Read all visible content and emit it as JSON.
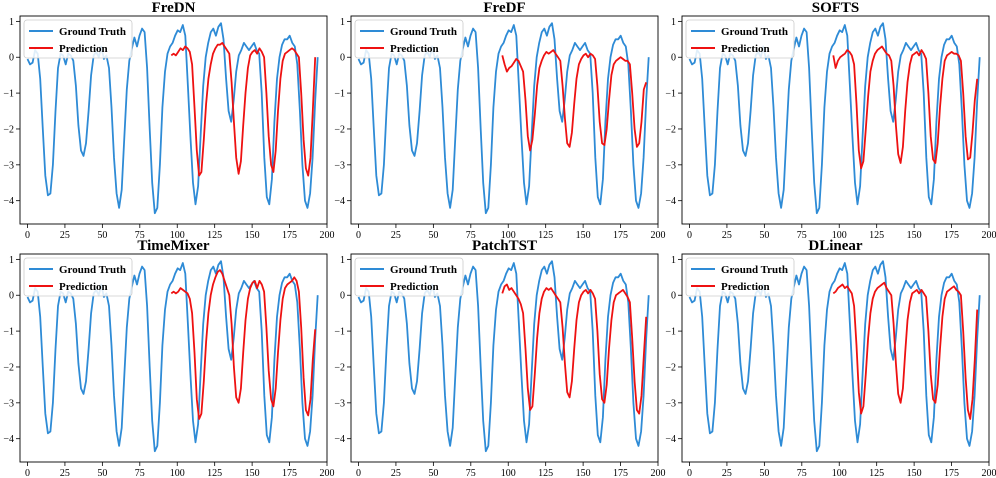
{
  "chart_data": [
    {
      "type": "line",
      "title": "FreDN",
      "xlim": [
        -5,
        200
      ],
      "ylim": [
        -4.65,
        1.15
      ],
      "xticks": [
        "0",
        "25",
        "50",
        "75",
        "100",
        "125",
        "150",
        "175",
        "200"
      ],
      "yticks": [
        "1",
        "0",
        "−1",
        "−2",
        "−3",
        "−4"
      ],
      "legend": {
        "position": "top-left",
        "entries": [
          "Ground Truth",
          "Prediction"
        ]
      },
      "prediction": [
        0.05,
        0.1,
        0.05,
        0.15,
        0.25,
        0.2,
        0.3,
        0.25,
        0.15,
        -0.2,
        -1.4,
        -2.6,
        -3.3,
        -3.2,
        -2.3,
        -1.3,
        -0.6,
        -0.2,
        0.1,
        0.25,
        0.35,
        0.35,
        0.4,
        0.3,
        0.2,
        0.1,
        -0.7,
        -1.8,
        -2.8,
        -3.25,
        -2.9,
        -1.9,
        -1.0,
        -0.3,
        0.05,
        0.15,
        0.2,
        0.1,
        0.25,
        0.15,
        0.0,
        -1.0,
        -2.2,
        -3.0,
        -3.2,
        -2.6,
        -1.5,
        -0.6,
        -0.1,
        0.1,
        0.15,
        0.2,
        0.25,
        0.2,
        0.1,
        0.0,
        -1.0,
        -2.3,
        -3.1,
        -3.3,
        -2.8,
        -1.5,
        0.0
      ]
    },
    {
      "type": "line",
      "title": "FreDF",
      "xlim": [
        -5,
        200
      ],
      "ylim": [
        -4.65,
        1.15
      ],
      "xticks": [
        "0",
        "25",
        "50",
        "75",
        "100",
        "125",
        "150",
        "175",
        "200"
      ],
      "yticks": [
        "1",
        "0",
        "−1",
        "−2",
        "−3",
        "−4"
      ],
      "legend": {
        "position": "top-left",
        "entries": [
          "Ground Truth",
          "Prediction"
        ]
      },
      "prediction": [
        0.05,
        -0.2,
        -0.4,
        -0.3,
        -0.25,
        -0.15,
        -0.05,
        -0.1,
        -0.25,
        -0.4,
        -1.2,
        -2.2,
        -2.6,
        -2.3,
        -1.6,
        -0.8,
        -0.3,
        -0.1,
        0.05,
        0.15,
        0.1,
        0.15,
        0.2,
        0.1,
        0.0,
        -0.1,
        -0.8,
        -1.7,
        -2.4,
        -2.5,
        -2.1,
        -1.3,
        -0.6,
        -0.2,
        -0.05,
        0.05,
        0.1,
        0.0,
        0.1,
        0.05,
        -0.05,
        -0.8,
        -1.8,
        -2.4,
        -2.45,
        -2.0,
        -1.2,
        -0.5,
        -0.2,
        -0.1,
        -0.05,
        0.0,
        -0.05,
        -0.1,
        -0.1,
        -0.2,
        -1.0,
        -2.0,
        -2.5,
        -2.4,
        -1.8,
        -0.9,
        -0.7
      ]
    },
    {
      "type": "line",
      "title": "SOFTS",
      "xlim": [
        -5,
        200
      ],
      "ylim": [
        -4.65,
        1.15
      ],
      "xticks": [
        "0",
        "25",
        "50",
        "75",
        "100",
        "125",
        "150",
        "175",
        "200"
      ],
      "yticks": [
        "1",
        "0",
        "−1",
        "−2",
        "−3",
        "−4"
      ],
      "legend": {
        "position": "top-left",
        "entries": [
          "Ground Truth",
          "Prediction"
        ]
      },
      "prediction": [
        0.05,
        -0.3,
        -0.1,
        0.0,
        0.05,
        0.1,
        0.2,
        0.15,
        0.05,
        -0.2,
        -1.3,
        -2.6,
        -3.1,
        -2.9,
        -2.0,
        -1.1,
        -0.4,
        -0.1,
        0.1,
        0.2,
        0.25,
        0.3,
        0.2,
        0.1,
        0.05,
        -0.1,
        -0.8,
        -1.9,
        -2.7,
        -2.95,
        -2.5,
        -1.5,
        -0.7,
        -0.2,
        0.05,
        0.1,
        0.15,
        0.05,
        0.2,
        0.1,
        -0.05,
        -1.0,
        -2.2,
        -2.85,
        -2.95,
        -2.4,
        -1.4,
        -0.6,
        -0.1,
        0.05,
        0.1,
        0.15,
        0.1,
        0.1,
        0.05,
        -0.1,
        -1.0,
        -2.2,
        -2.85,
        -2.8,
        -2.1,
        -1.2,
        -0.6
      ]
    },
    {
      "type": "line",
      "title": "TimeMixer",
      "xlim": [
        -5,
        200
      ],
      "ylim": [
        -4.65,
        1.15
      ],
      "xticks": [
        "0",
        "25",
        "50",
        "75",
        "100",
        "125",
        "150",
        "175",
        "200"
      ],
      "yticks": [
        "1",
        "0",
        "−1",
        "−2",
        "−3",
        "−4"
      ],
      "legend": {
        "position": "top-left",
        "entries": [
          "Ground Truth",
          "Prediction"
        ]
      },
      "prediction": [
        0.05,
        0.1,
        0.05,
        0.1,
        0.2,
        0.15,
        0.1,
        0.05,
        -0.1,
        -0.5,
        -1.6,
        -2.9,
        -3.45,
        -3.3,
        -2.4,
        -1.3,
        -0.5,
        0.0,
        0.3,
        0.5,
        0.65,
        0.7,
        0.6,
        0.4,
        0.2,
        0.0,
        -0.8,
        -2.0,
        -2.85,
        -3.0,
        -2.6,
        -1.6,
        -0.7,
        -0.1,
        0.2,
        0.35,
        0.4,
        0.2,
        0.4,
        0.3,
        0.1,
        -0.9,
        -2.1,
        -2.9,
        -3.1,
        -2.6,
        -1.6,
        -0.7,
        -0.1,
        0.2,
        0.3,
        0.35,
        0.4,
        0.5,
        0.4,
        0.1,
        -0.9,
        -2.3,
        -3.2,
        -3.35,
        -2.9,
        -1.8,
        -0.95
      ]
    },
    {
      "type": "line",
      "title": "PatchTST",
      "xlim": [
        -5,
        200
      ],
      "ylim": [
        -4.65,
        1.15
      ],
      "xticks": [
        "0",
        "25",
        "50",
        "75",
        "100",
        "125",
        "150",
        "175",
        "200"
      ],
      "yticks": [
        "1",
        "0",
        "−1",
        "−2",
        "−3",
        "−4"
      ],
      "legend": {
        "position": "top-left",
        "entries": [
          "Ground Truth",
          "Prediction"
        ]
      },
      "prediction": [
        0.05,
        0.25,
        0.3,
        0.15,
        0.2,
        0.1,
        0.0,
        -0.1,
        -0.25,
        -0.5,
        -1.5,
        -2.6,
        -3.2,
        -3.1,
        -2.2,
        -1.2,
        -0.5,
        -0.1,
        0.1,
        0.2,
        0.15,
        0.2,
        0.1,
        0.0,
        -0.1,
        -0.2,
        -0.9,
        -1.9,
        -2.7,
        -2.85,
        -2.4,
        -1.5,
        -0.7,
        -0.2,
        0.0,
        0.1,
        0.15,
        0.05,
        0.15,
        0.05,
        -0.1,
        -1.0,
        -2.2,
        -2.9,
        -3.0,
        -2.5,
        -1.5,
        -0.7,
        -0.2,
        0.0,
        0.05,
        0.1,
        0.15,
        0.05,
        -0.05,
        -0.2,
        -1.2,
        -2.4,
        -3.2,
        -3.3,
        -2.8,
        -1.7,
        -0.6
      ]
    },
    {
      "type": "line",
      "title": "DLinear",
      "xlim": [
        -5,
        200
      ],
      "ylim": [
        -4.65,
        1.15
      ],
      "xticks": [
        "0",
        "25",
        "50",
        "75",
        "100",
        "125",
        "150",
        "175",
        "200"
      ],
      "yticks": [
        "1",
        "0",
        "−1",
        "−2",
        "−3",
        "−4"
      ],
      "legend": {
        "position": "top-left",
        "entries": [
          "Ground Truth",
          "Prediction"
        ]
      },
      "prediction": [
        0.05,
        0.1,
        0.2,
        0.25,
        0.3,
        0.2,
        0.25,
        0.15,
        0.05,
        -0.3,
        -1.4,
        -2.7,
        -3.3,
        -3.1,
        -2.2,
        -1.2,
        -0.5,
        -0.1,
        0.1,
        0.2,
        0.25,
        0.3,
        0.35,
        0.2,
        0.1,
        0.0,
        -0.8,
        -1.9,
        -2.75,
        -3.0,
        -2.6,
        -1.6,
        -0.7,
        -0.2,
        0.05,
        0.1,
        0.15,
        0.05,
        0.15,
        0.05,
        -0.05,
        -1.0,
        -2.2,
        -2.9,
        -3.0,
        -2.5,
        -1.5,
        -0.6,
        -0.1,
        0.1,
        0.15,
        0.2,
        0.25,
        0.15,
        0.1,
        0.0,
        -1.0,
        -2.3,
        -3.2,
        -3.45,
        -2.9,
        -1.8,
        -0.4
      ]
    }
  ],
  "ground_truth": [
    -0.05,
    -0.2,
    -0.15,
    0.2,
    0.1,
    -0.6,
    -2.0,
    -3.3,
    -3.85,
    -3.8,
    -3.0,
    -1.5,
    -0.3,
    0.1,
    0.05,
    -0.2,
    0.1,
    0.05,
    -0.1,
    -0.8,
    -1.9,
    -2.6,
    -2.75,
    -2.4,
    -1.5,
    -0.5,
    0.05,
    0.15,
    0.0,
    0.3,
    -0.05,
    0.05,
    -0.3,
    -1.4,
    -2.8,
    -3.8,
    -4.2,
    -3.7,
    -2.3,
    -0.9,
    -0.1,
    0.25,
    0.55,
    0.3,
    0.6,
    0.8,
    0.7,
    -0.3,
    -2.0,
    -3.5,
    -4.35,
    -4.2,
    -3.0,
    -1.4,
    -0.4,
    0.1,
    0.3,
    0.4,
    0.6,
    0.75,
    0.7,
    0.9,
    0.6,
    -0.8,
    -2.2,
    -3.5,
    -4.1,
    -3.6,
    -2.2,
    -0.8,
    0.0,
    0.4,
    0.7,
    0.8,
    0.6,
    0.85,
    0.95,
    0.5,
    -0.6,
    -1.5,
    -1.8,
    -1.2,
    -0.4,
    0.05,
    0.2,
    0.4,
    0.3,
    0.2,
    0.3,
    0.4,
    0.2,
    0.1,
    -1.0,
    -2.8,
    -3.9,
    -4.1,
    -3.4,
    -1.8,
    -0.6,
    0.0,
    0.35,
    0.5,
    0.5,
    0.6,
    0.4,
    0.3,
    -0.2,
    -1.5,
    -3.0,
    -4.0,
    -4.2,
    -3.8,
    -2.8,
    -1.2,
    0.0
  ]
}
